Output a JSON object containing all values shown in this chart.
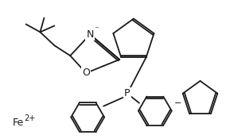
{
  "bg_color": "#ffffff",
  "line_color": "#1a1a1a",
  "line_width": 1.3,
  "fig_width": 2.94,
  "fig_height": 1.75,
  "dpi": 100,
  "fe_label": "Fe",
  "fe_charge": "2+",
  "n_label": "N",
  "o_label": "O",
  "p_label": "P"
}
